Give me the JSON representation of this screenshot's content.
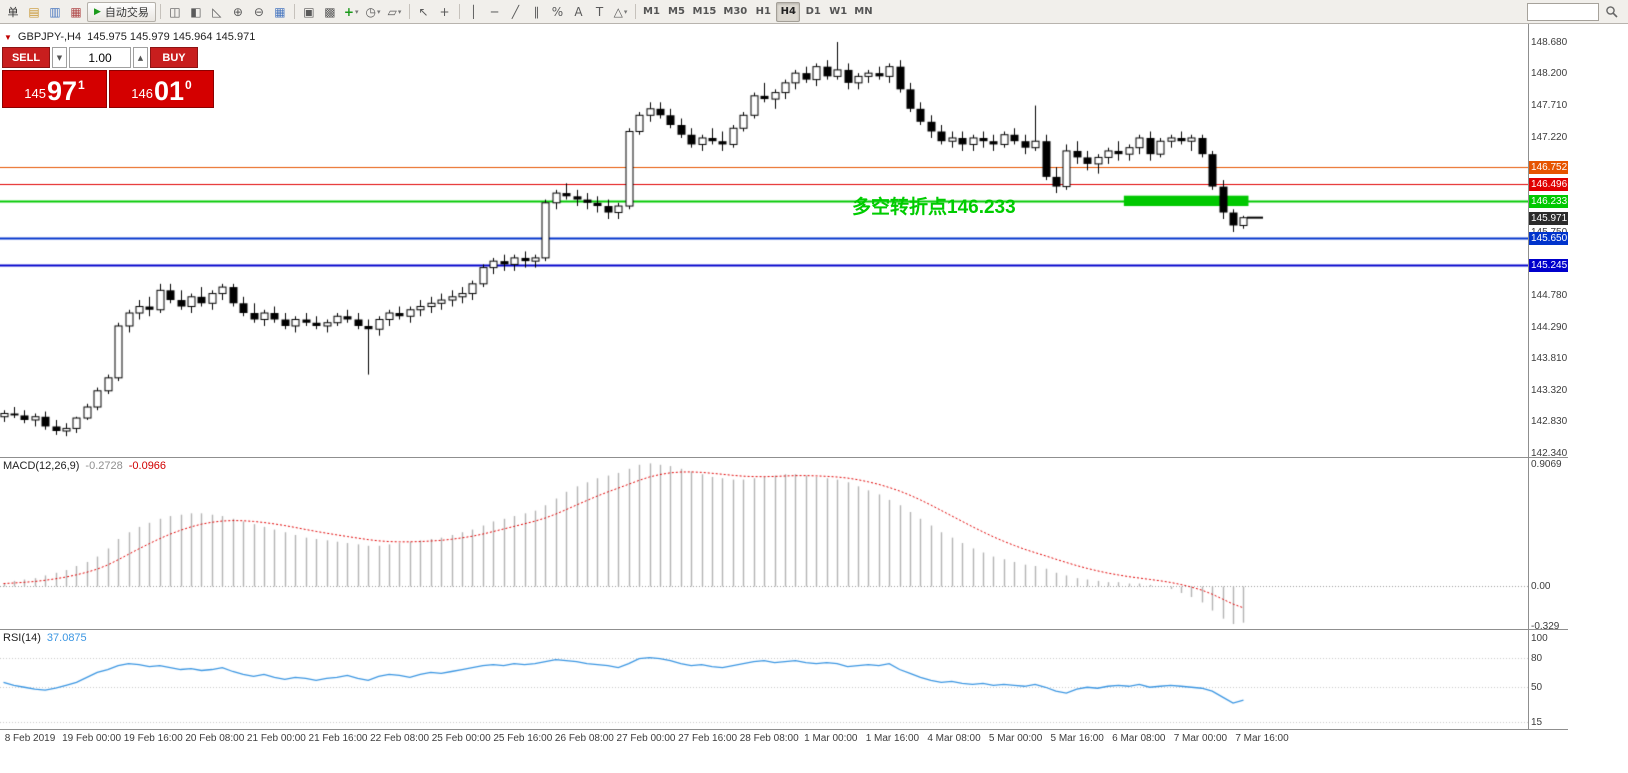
{
  "colors": {
    "buy_sell_red": "#c81e1e",
    "price_box_red": "#d40000",
    "level_orange": "#e65400",
    "level_red": "#e00000",
    "level_green": "#00c800",
    "level_blue": "#0033cc",
    "current_price_tag": "#2b2b2b",
    "macd_signal_red": "#e00000",
    "rsi_blue": "#3b96e2",
    "annotation_green": "#00cc00"
  },
  "toolbar": {
    "new_order_label": "单",
    "leading_icons": [
      {
        "name": "new-chart-icon",
        "glyph": "▤",
        "color": "#c89632"
      },
      {
        "name": "profiles-icon",
        "glyph": "▥",
        "color": "#4a78c0"
      },
      {
        "name": "market-watch-icon",
        "glyph": "▦",
        "color": "#b04848"
      }
    ],
    "autotrading_label": "自动交易",
    "autotrading_play_glyph": "▶",
    "items": [
      {
        "sep": true
      },
      {
        "name": "bar-chart-icon",
        "glyph": "◫"
      },
      {
        "name": "candlestick-chart-icon",
        "glyph": "◧"
      },
      {
        "name": "line-chart-icon",
        "glyph": "◺"
      },
      {
        "name": "zoom-in-icon",
        "glyph": "⊕"
      },
      {
        "name": "zoom-out-icon",
        "glyph": "⊖"
      },
      {
        "name": "grid-icon",
        "glyph": "▦",
        "color": "#4a78c0"
      },
      {
        "sep": true
      },
      {
        "name": "tile-windows-icon",
        "glyph": "▣"
      },
      {
        "name": "cascade-windows-icon",
        "glyph": "▩"
      },
      {
        "name": "add-indicator-icon",
        "glyph": "+",
        "color": "#1a9a1a",
        "caret": true
      },
      {
        "name": "periods-icon",
        "glyph": "◷",
        "caret": true
      },
      {
        "name": "templates-icon",
        "glyph": "▱",
        "caret": true
      },
      {
        "sep": true
      },
      {
        "name": "cursor-icon",
        "glyph": "↖"
      },
      {
        "name": "crosshair-icon",
        "glyph": "+"
      },
      {
        "sep": true
      },
      {
        "name": "vertical-line-icon",
        "glyph": "│"
      },
      {
        "name": "horizontal-line-icon",
        "glyph": "─"
      },
      {
        "name": "trendline-icon",
        "glyph": "╱"
      },
      {
        "name": "channel-icon",
        "glyph": "∥"
      },
      {
        "name": "fibonacci-icon",
        "glyph": "%"
      },
      {
        "name": "text-icon",
        "glyph": "A"
      },
      {
        "name": "label-icon",
        "glyph": "T"
      },
      {
        "name": "shapes-icon",
        "glyph": "△",
        "caret": true
      },
      {
        "sep": true
      }
    ],
    "timeframes": [
      "M1",
      "M5",
      "M15",
      "M30",
      "H1",
      "H4",
      "D1",
      "W1",
      "MN"
    ],
    "active_timeframe": "H4",
    "search_placeholder": ""
  },
  "chart": {
    "collapse_glyph": "▼",
    "symbol_label": "GBPJPY-,H4",
    "ohlc": "145.975 145.979 145.964 145.971",
    "annotation": "多空转折点146.233",
    "current": {
      "label": "145.971",
      "value": 145.971
    },
    "levels": [
      {
        "label": "146.752",
        "price": 146.752,
        "color": "#e65400",
        "width": 1
      },
      {
        "label": "146.496",
        "price": 146.496,
        "color": "#e00000",
        "width": 1
      },
      {
        "label": "146.233",
        "price": 146.233,
        "color": "#00c800",
        "width": 2
      },
      {
        "label": "145.650",
        "price": 145.65,
        "color": "#0033cc",
        "width": 2
      },
      {
        "label": "145.245",
        "price": 145.245,
        "color": "#0000cc",
        "width": 2
      }
    ],
    "zone": {
      "from_candle": 108,
      "to_candle": 119,
      "price_top": 146.31,
      "price_bottom": 146.15,
      "color": "#00c800"
    },
    "axis_ticks": [
      {
        "label": "148.680",
        "value": 148.68
      },
      {
        "label": "148.200",
        "value": 148.2
      },
      {
        "label": "147.710",
        "value": 147.71
      },
      {
        "label": "147.220",
        "value": 147.22
      },
      {
        "label": "145.750",
        "value": 145.75
      },
      {
        "label": "144.780",
        "value": 144.78
      },
      {
        "label": "144.290",
        "value": 144.29
      },
      {
        "label": "143.810",
        "value": 143.81
      },
      {
        "label": "143.320",
        "value": 143.32
      },
      {
        "label": "142.830",
        "value": 142.83
      },
      {
        "label": "142.340",
        "value": 142.34
      }
    ]
  },
  "trade_panel": {
    "sell_label": "SELL",
    "buy_label": "BUY",
    "lot_size": "1.00",
    "step_down_glyph": "▼",
    "step_up_glyph": "▲",
    "sell_price_small": "145",
    "sell_price_big": "97",
    "sell_price_sup": "1",
    "buy_price_small": "146",
    "buy_price_big": "01",
    "buy_price_sup": "0"
  },
  "macd": {
    "label": "MACD(12,26,9)",
    "value": "-0.2728",
    "signal_value": "-0.0966",
    "axis": [
      {
        "label": "0.9069",
        "value": 0.9069
      },
      {
        "label": "0.00",
        "value": 0
      },
      {
        "label": "-0.329",
        "value": -0.329
      }
    ]
  },
  "rsi": {
    "label": "RSI(14)",
    "value": "37.0875",
    "axis": [
      {
        "label": "100",
        "value": 100
      },
      {
        "label": "80",
        "value": 80
      },
      {
        "label": "50",
        "value": 50
      },
      {
        "label": "15",
        "value": 15
      }
    ]
  },
  "time_axis": {
    "labels": [
      "8 Feb 2019",
      "19 Feb 00:00",
      "19 Feb 16:00",
      "20 Feb 08:00",
      "21 Feb 00:00",
      "21 Feb 16:00",
      "22 Feb 08:00",
      "25 Feb 00:00",
      "25 Feb 16:00",
      "26 Feb 08:00",
      "27 Feb 00:00",
      "27 Feb 16:00",
      "28 Feb 08:00",
      "1 Mar 00:00",
      "1 Mar 16:00",
      "4 Mar 08:00",
      "5 Mar 00:00",
      "5 Mar 16:00",
      "6 Mar 08:00",
      "7 Mar 00:00",
      "7 Mar 16:00"
    ]
  },
  "chart_data": {
    "type": "candlestick",
    "symbol": "GBPJPY-",
    "timeframe": "H4",
    "price_range": [
      142.34,
      148.96
    ],
    "candles": [
      [
        142.9,
        143.0,
        142.82,
        142.95
      ],
      [
        142.95,
        143.05,
        142.88,
        142.92
      ],
      [
        142.92,
        143.0,
        142.8,
        142.85
      ],
      [
        142.85,
        142.95,
        142.75,
        142.9
      ],
      [
        142.9,
        142.98,
        142.7,
        142.75
      ],
      [
        142.75,
        142.85,
        142.62,
        142.68
      ],
      [
        142.68,
        142.8,
        142.6,
        142.72
      ],
      [
        142.72,
        142.9,
        142.65,
        142.88
      ],
      [
        142.88,
        143.1,
        142.85,
        143.05
      ],
      [
        143.05,
        143.35,
        143.0,
        143.3
      ],
      [
        143.3,
        143.55,
        143.25,
        143.5
      ],
      [
        143.5,
        144.35,
        143.45,
        144.3
      ],
      [
        144.3,
        144.55,
        144.2,
        144.5
      ],
      [
        144.5,
        144.7,
        144.4,
        144.6
      ],
      [
        144.6,
        144.75,
        144.45,
        144.55
      ],
      [
        144.55,
        144.95,
        144.5,
        144.85
      ],
      [
        144.85,
        144.95,
        144.65,
        144.7
      ],
      [
        144.7,
        144.85,
        144.55,
        144.6
      ],
      [
        144.6,
        144.8,
        144.5,
        144.75
      ],
      [
        144.75,
        144.9,
        144.6,
        144.65
      ],
      [
        144.65,
        144.85,
        144.55,
        144.8
      ],
      [
        144.8,
        144.95,
        144.7,
        144.9
      ],
      [
        144.9,
        144.95,
        144.6,
        144.65
      ],
      [
        144.65,
        144.75,
        144.45,
        144.5
      ],
      [
        144.5,
        144.65,
        144.35,
        144.4
      ],
      [
        144.4,
        144.55,
        144.3,
        144.5
      ],
      [
        144.5,
        144.6,
        144.35,
        144.4
      ],
      [
        144.4,
        144.5,
        144.25,
        144.3
      ],
      [
        144.3,
        144.45,
        144.2,
        144.4
      ],
      [
        144.4,
        144.5,
        144.3,
        144.35
      ],
      [
        144.35,
        144.45,
        144.25,
        144.3
      ],
      [
        144.3,
        144.4,
        144.2,
        144.35
      ],
      [
        144.35,
        144.5,
        144.3,
        144.45
      ],
      [
        144.45,
        144.55,
        144.35,
        144.4
      ],
      [
        144.4,
        144.5,
        144.25,
        144.3
      ],
      [
        144.3,
        144.4,
        143.55,
        144.25
      ],
      [
        144.25,
        144.45,
        144.15,
        144.4
      ],
      [
        144.4,
        144.55,
        144.3,
        144.5
      ],
      [
        144.5,
        144.6,
        144.4,
        144.45
      ],
      [
        144.45,
        144.6,
        144.35,
        144.55
      ],
      [
        144.55,
        144.7,
        144.45,
        144.6
      ],
      [
        144.6,
        144.75,
        144.5,
        144.65
      ],
      [
        144.65,
        144.8,
        144.55,
        144.7
      ],
      [
        144.7,
        144.85,
        144.6,
        144.75
      ],
      [
        144.75,
        144.9,
        144.65,
        144.8
      ],
      [
        144.8,
        145.0,
        144.7,
        144.95
      ],
      [
        144.95,
        145.25,
        144.9,
        145.2
      ],
      [
        145.2,
        145.35,
        145.1,
        145.3
      ],
      [
        145.3,
        145.4,
        145.15,
        145.25
      ],
      [
        145.25,
        145.4,
        145.15,
        145.35
      ],
      [
        145.35,
        145.45,
        145.2,
        145.3
      ],
      [
        145.3,
        145.4,
        145.2,
        145.35
      ],
      [
        145.35,
        146.25,
        145.3,
        146.2
      ],
      [
        146.2,
        146.4,
        146.1,
        146.35
      ],
      [
        146.35,
        146.5,
        146.25,
        146.3
      ],
      [
        146.3,
        146.4,
        146.15,
        146.25
      ],
      [
        146.25,
        146.35,
        146.1,
        146.2
      ],
      [
        146.2,
        146.3,
        146.05,
        146.15
      ],
      [
        146.15,
        146.25,
        145.95,
        146.05
      ],
      [
        146.05,
        146.2,
        145.95,
        146.15
      ],
      [
        146.15,
        147.35,
        146.1,
        147.3
      ],
      [
        147.3,
        147.6,
        147.25,
        147.55
      ],
      [
        147.55,
        147.75,
        147.45,
        147.65
      ],
      [
        147.65,
        147.75,
        147.5,
        147.55
      ],
      [
        147.55,
        147.65,
        147.35,
        147.4
      ],
      [
        147.4,
        147.5,
        147.2,
        147.25
      ],
      [
        147.25,
        147.35,
        147.05,
        147.1
      ],
      [
        147.1,
        147.25,
        147.0,
        147.2
      ],
      [
        147.2,
        147.35,
        147.1,
        147.15
      ],
      [
        147.15,
        147.3,
        147.0,
        147.1
      ],
      [
        147.1,
        147.4,
        147.05,
        147.35
      ],
      [
        147.35,
        147.6,
        147.3,
        147.55
      ],
      [
        147.55,
        147.9,
        147.5,
        147.85
      ],
      [
        147.85,
        148.05,
        147.75,
        147.8
      ],
      [
        147.8,
        147.95,
        147.65,
        147.9
      ],
      [
        147.9,
        148.1,
        147.8,
        148.05
      ],
      [
        148.05,
        148.25,
        147.95,
        148.2
      ],
      [
        148.2,
        148.3,
        148.05,
        148.1
      ],
      [
        148.1,
        148.35,
        148.0,
        148.3
      ],
      [
        148.3,
        148.4,
        148.1,
        148.15
      ],
      [
        148.15,
        148.68,
        148.1,
        148.25
      ],
      [
        148.25,
        148.35,
        147.95,
        148.05
      ],
      [
        148.05,
        148.2,
        147.95,
        148.15
      ],
      [
        148.15,
        148.25,
        148.05,
        148.2
      ],
      [
        148.2,
        148.3,
        148.1,
        148.15
      ],
      [
        148.15,
        148.35,
        148.05,
        148.3
      ],
      [
        148.3,
        148.4,
        147.9,
        147.95
      ],
      [
        147.95,
        148.05,
        147.6,
        147.65
      ],
      [
        147.65,
        147.75,
        147.4,
        147.45
      ],
      [
        147.45,
        147.55,
        147.2,
        147.3
      ],
      [
        147.3,
        147.4,
        147.1,
        147.15
      ],
      [
        147.15,
        147.3,
        147.05,
        147.2
      ],
      [
        147.2,
        147.3,
        147.0,
        147.1
      ],
      [
        147.1,
        147.25,
        147.0,
        147.2
      ],
      [
        147.2,
        147.3,
        147.05,
        147.15
      ],
      [
        147.15,
        147.25,
        147.0,
        147.1
      ],
      [
        147.1,
        147.3,
        147.05,
        147.25
      ],
      [
        147.25,
        147.35,
        147.1,
        147.15
      ],
      [
        147.15,
        147.25,
        146.95,
        147.05
      ],
      [
        147.05,
        147.7,
        147.0,
        147.15
      ],
      [
        147.15,
        147.25,
        146.55,
        146.6
      ],
      [
        146.6,
        146.75,
        146.35,
        146.45
      ],
      [
        146.45,
        147.1,
        146.4,
        147.0
      ],
      [
        147.0,
        147.15,
        146.8,
        146.9
      ],
      [
        146.9,
        147.0,
        146.7,
        146.8
      ],
      [
        146.8,
        146.95,
        146.65,
        146.9
      ],
      [
        146.9,
        147.05,
        146.8,
        147.0
      ],
      [
        147.0,
        147.15,
        146.85,
        146.95
      ],
      [
        146.95,
        147.1,
        146.85,
        147.05
      ],
      [
        147.05,
        147.25,
        146.95,
        147.2
      ],
      [
        147.2,
        147.3,
        146.85,
        146.95
      ],
      [
        146.95,
        147.2,
        146.9,
        147.15
      ],
      [
        147.15,
        147.25,
        147.05,
        147.2
      ],
      [
        147.2,
        147.3,
        147.1,
        147.15
      ],
      [
        147.15,
        147.25,
        147.0,
        147.2
      ],
      [
        147.2,
        147.25,
        146.9,
        146.95
      ],
      [
        146.95,
        147.0,
        146.4,
        146.45
      ],
      [
        146.45,
        146.55,
        145.95,
        146.05
      ],
      [
        146.05,
        146.1,
        145.75,
        145.85
      ],
      [
        145.85,
        146.0,
        145.8,
        145.97
      ]
    ],
    "macd": [
      0.02,
      0.04,
      0.05,
      0.06,
      0.08,
      0.1,
      0.12,
      0.15,
      0.18,
      0.22,
      0.28,
      0.35,
      0.4,
      0.44,
      0.47,
      0.5,
      0.52,
      0.53,
      0.54,
      0.54,
      0.53,
      0.52,
      0.5,
      0.48,
      0.46,
      0.44,
      0.42,
      0.4,
      0.38,
      0.36,
      0.35,
      0.34,
      0.33,
      0.32,
      0.31,
      0.3,
      0.3,
      0.31,
      0.32,
      0.33,
      0.34,
      0.35,
      0.36,
      0.38,
      0.4,
      0.42,
      0.45,
      0.48,
      0.5,
      0.52,
      0.54,
      0.56,
      0.6,
      0.65,
      0.7,
      0.74,
      0.77,
      0.8,
      0.82,
      0.84,
      0.87,
      0.9,
      0.91,
      0.9,
      0.89,
      0.87,
      0.85,
      0.83,
      0.81,
      0.8,
      0.79,
      0.79,
      0.8,
      0.81,
      0.82,
      0.83,
      0.83,
      0.82,
      0.81,
      0.8,
      0.79,
      0.77,
      0.74,
      0.71,
      0.68,
      0.64,
      0.6,
      0.55,
      0.5,
      0.45,
      0.4,
      0.36,
      0.32,
      0.28,
      0.25,
      0.22,
      0.2,
      0.18,
      0.16,
      0.15,
      0.13,
      0.1,
      0.08,
      0.06,
      0.05,
      0.04,
      0.03,
      0.03,
      0.02,
      0.02,
      0.01,
      0.0,
      -0.02,
      -0.05,
      -0.08,
      -0.12,
      -0.18,
      -0.24,
      -0.28,
      -0.27
    ],
    "rsi": [
      55,
      52,
      50,
      48,
      47,
      49,
      52,
      55,
      60,
      65,
      68,
      72,
      74,
      73,
      71,
      72,
      70,
      68,
      69,
      67,
      68,
      70,
      66,
      63,
      61,
      63,
      60,
      58,
      60,
      59,
      57,
      59,
      60,
      62,
      59,
      57,
      61,
      63,
      62,
      60,
      63,
      65,
      64,
      66,
      68,
      70,
      72,
      73,
      72,
      74,
      73,
      74,
      76,
      78,
      77,
      76,
      74,
      73,
      72,
      70,
      74,
      79,
      80,
      79,
      77,
      74,
      72,
      73,
      71,
      70,
      72,
      74,
      76,
      77,
      75,
      76,
      77,
      75,
      74,
      75,
      74,
      71,
      72,
      73,
      72,
      74,
      68,
      64,
      60,
      57,
      55,
      56,
      54,
      53,
      54,
      52,
      53,
      52,
      51,
      53,
      50,
      46,
      44,
      48,
      50,
      49,
      51,
      52,
      51,
      53,
      50,
      51,
      52,
      51,
      50,
      49,
      46,
      40,
      34,
      37
    ]
  }
}
